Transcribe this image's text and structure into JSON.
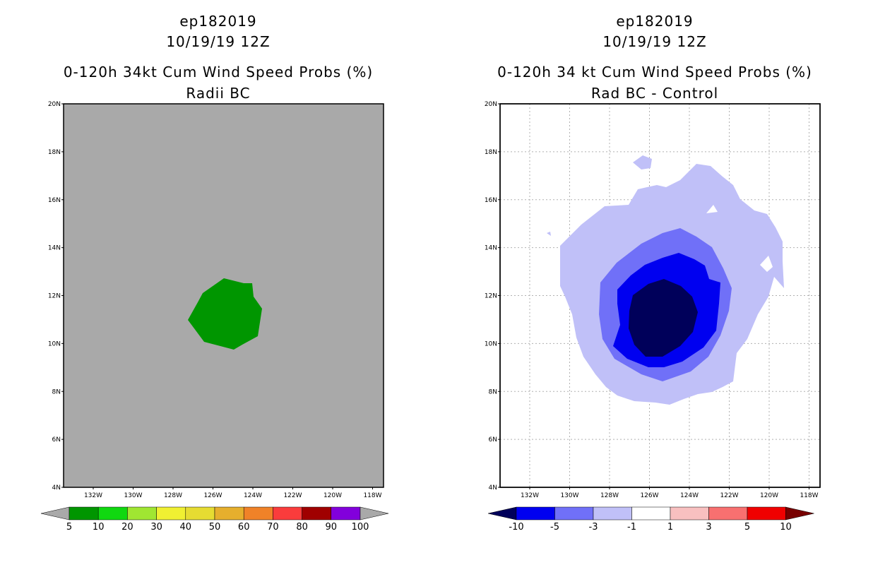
{
  "left_panel": {
    "storm_id": "ep182019",
    "datetime": "10/19/19 12Z",
    "title": "0-120h 34kt Cum Wind Speed Probs (%)",
    "subtitle": "Radii BC",
    "lat_labels": [
      "4N",
      "6N",
      "8N",
      "10N",
      "12N",
      "14N",
      "16N",
      "18N",
      "20N"
    ],
    "lon_labels": [
      "132W",
      "130W",
      "128W",
      "126W",
      "124W",
      "122W",
      "120W",
      "118W"
    ],
    "colorbar_labels": [
      "5",
      "10",
      "20",
      "30",
      "40",
      "50",
      "60",
      "70",
      "80",
      "90",
      "100"
    ],
    "colors": {
      "background": "#a9a9a9",
      "bins": [
        "#009600",
        "#10d810",
        "#a0e632",
        "#f0f032",
        "#e6dc32",
        "#e6af2d",
        "#f08228",
        "#fa3c3c",
        "#a00000",
        "#8200dc"
      ],
      "under": "#a9a9a9",
      "over": "#a9a9a9"
    }
  },
  "right_panel": {
    "storm_id": "ep182019",
    "datetime": "10/19/19 12Z",
    "title": "0-120h 34 kt Cum Wind Speed Probs (%)",
    "subtitle": "Rad BC - Control",
    "lat_labels": [
      "4N",
      "6N",
      "8N",
      "10N",
      "12N",
      "14N",
      "16N",
      "18N",
      "20N"
    ],
    "lon_labels": [
      "132W",
      "130W",
      "128W",
      "126W",
      "124W",
      "122W",
      "120W",
      "118W"
    ],
    "colorbar_labels": [
      "-10",
      "-5",
      "-3",
      "-1",
      "1",
      "3",
      "5",
      "10"
    ],
    "colors": {
      "under": "#00005a",
      "bins": [
        "#0000f0",
        "#7070f8",
        "#c0c0f8",
        "#ffffff",
        "#f8c0c0",
        "#f87070",
        "#f00000"
      ],
      "over": "#780000",
      "contour_lightest": "#c0c0f8",
      "contour_mid": "#7070f8",
      "contour_strong": "#0000f0",
      "contour_darkest": "#00005a"
    }
  }
}
